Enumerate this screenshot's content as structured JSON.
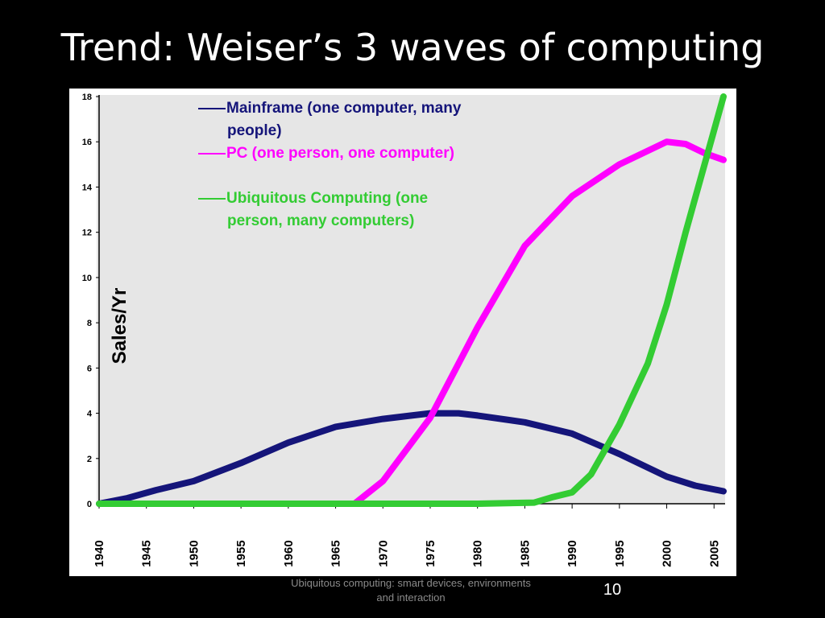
{
  "slide": {
    "title": "Trend: Weiser’s 3 waves of computing",
    "footer": "Ubiquitous computing: smart devices, environments and interaction",
    "page_number": "10"
  },
  "chart_data": {
    "type": "line",
    "title": "",
    "xlabel": "",
    "ylabel": "Sales/Yr",
    "xlim": [
      1940,
      2006
    ],
    "ylim": [
      0,
      18
    ],
    "x_ticks": [
      1940,
      1945,
      1950,
      1955,
      1960,
      1965,
      1970,
      1975,
      1980,
      1985,
      1990,
      1995,
      2000,
      2005
    ],
    "y_ticks": [
      0,
      2,
      4,
      6,
      8,
      10,
      12,
      14,
      16,
      18
    ],
    "grid": false,
    "legend_placement": "top-left",
    "plot_background": "#e6e6e6",
    "series": [
      {
        "name": "Mainframe (one computer, many people)",
        "legend_lines": [
          "Mainframe (one computer, many",
          "people)"
        ],
        "color": "#15157a",
        "x": [
          1940,
          1943,
          1946,
          1950,
          1955,
          1960,
          1965,
          1970,
          1975,
          1978,
          1980,
          1985,
          1990,
          1995,
          2000,
          2003,
          2006
        ],
        "y": [
          0,
          0.25,
          0.6,
          1.0,
          1.8,
          2.7,
          3.4,
          3.75,
          4.0,
          4.0,
          3.9,
          3.6,
          3.1,
          2.2,
          1.2,
          0.8,
          0.55
        ]
      },
      {
        "name": "PC (one person, one computer)",
        "legend_lines": [
          "PC (one person, one computer)"
        ],
        "color": "#ff00ff",
        "x": [
          1967,
          1970,
          1975,
          1980,
          1985,
          1990,
          1995,
          2000,
          2002,
          2004,
          2006
        ],
        "y": [
          0,
          1.0,
          3.8,
          7.8,
          11.4,
          13.6,
          15.0,
          16.0,
          15.9,
          15.5,
          15.2
        ]
      },
      {
        "name": "Ubiquitous Computing (one person, many computers)",
        "legend_lines": [
          "Ubiquitous Computing (one",
          "person, many computers)"
        ],
        "color": "#33cc33",
        "x": [
          1940,
          1980,
          1986,
          1988,
          1990,
          1992,
          1995,
          1998,
          2000,
          2002,
          2004,
          2006
        ],
        "y": [
          0,
          0,
          0.05,
          0.3,
          0.5,
          1.3,
          3.5,
          6.2,
          8.8,
          12.0,
          15.0,
          18.0
        ]
      }
    ]
  }
}
